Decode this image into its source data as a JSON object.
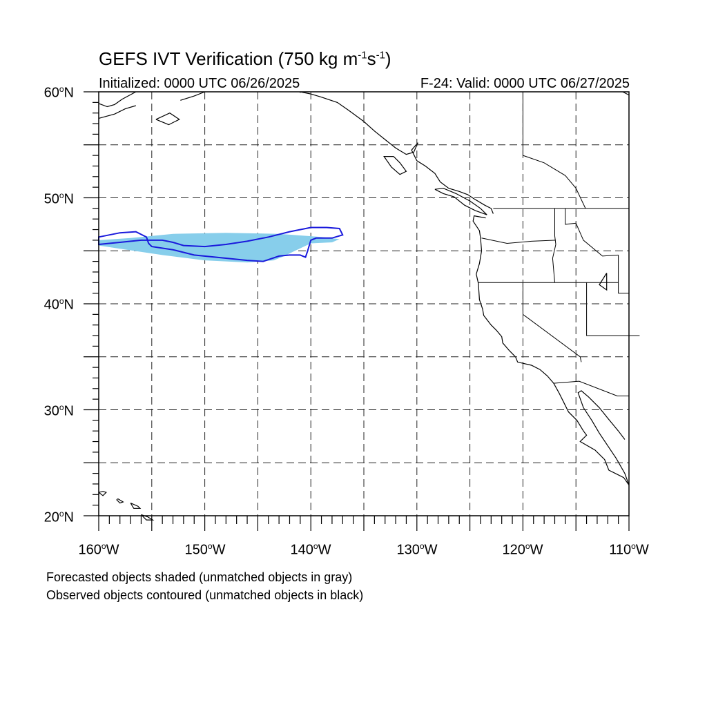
{
  "title": {
    "prefix": "GEFS IVT Verification (750 kg m",
    "exp1": "-1",
    "mid": "s",
    "exp2": "-1",
    "suffix": ")"
  },
  "subtitle_left": "Initialized: 0000 UTC 06/26/2025",
  "subtitle_right": "F-24: Valid: 0000 UTC 06/27/2025",
  "lat_labels": [
    {
      "num": "60",
      "deg": "o",
      "hem": "N"
    },
    {
      "num": "50",
      "deg": "o",
      "hem": "N"
    },
    {
      "num": "40",
      "deg": "o",
      "hem": "N"
    },
    {
      "num": "30",
      "deg": "o",
      "hem": "N"
    },
    {
      "num": "20",
      "deg": "o",
      "hem": "N"
    }
  ],
  "lon_labels": [
    {
      "num": "160",
      "deg": "o",
      "hem": "W"
    },
    {
      "num": "150",
      "deg": "o",
      "hem": "W"
    },
    {
      "num": "140",
      "deg": "o",
      "hem": "W"
    },
    {
      "num": "130",
      "deg": "o",
      "hem": "W"
    },
    {
      "num": "120",
      "deg": "o",
      "hem": "W"
    },
    {
      "num": "110",
      "deg": "o",
      "hem": "W"
    }
  ],
  "notes": {
    "forecast": "Forecasted objects shaded (unmatched objects in gray)",
    "observed": "Observed objects contoured (unmatched objects in black)"
  },
  "map": {
    "lon_range": [
      -160,
      -110
    ],
    "lat_range": [
      20,
      60
    ],
    "grid_spacing_deg": 5,
    "grid_style": "dashed",
    "forecast_fill_color": "#87ceeb",
    "observed_contour_color": "#1a1adc",
    "forecast_object": [
      [
        -160,
        46.0
      ],
      [
        -157,
        46.2
      ],
      [
        -153,
        46.6
      ],
      [
        -148,
        46.7
      ],
      [
        -143,
        46.6
      ],
      [
        -139,
        46.3
      ],
      [
        -137.3,
        46.1
      ],
      [
        -138,
        45.8
      ],
      [
        -140,
        45.7
      ],
      [
        -141.5,
        45.0
      ],
      [
        -142.5,
        44.5
      ],
      [
        -143.5,
        44.1
      ],
      [
        -146,
        43.9
      ],
      [
        -150,
        44.1
      ],
      [
        -154,
        44.6
      ],
      [
        -158,
        45.2
      ],
      [
        -160,
        45.5
      ]
    ],
    "observed_object": [
      [
        -160,
        46.3
      ],
      [
        -158,
        46.7
      ],
      [
        -156.5,
        46.8
      ],
      [
        -155.5,
        46.3
      ],
      [
        -155.3,
        45.7
      ],
      [
        -155,
        45.4
      ],
      [
        -153,
        45.1
      ],
      [
        -151,
        44.6
      ],
      [
        -148,
        44.3
      ],
      [
        -146,
        44.1
      ],
      [
        -144.5,
        44.0
      ],
      [
        -143,
        44.5
      ],
      [
        -142,
        44.6
      ],
      [
        -141,
        44.6
      ],
      [
        -140.5,
        44.4
      ],
      [
        -140.3,
        45.0
      ],
      [
        -140,
        46.0
      ],
      [
        -139.5,
        46.2
      ],
      [
        -138,
        46.2
      ],
      [
        -137,
        46.5
      ],
      [
        -137.3,
        47.1
      ],
      [
        -138.5,
        47.2
      ],
      [
        -140,
        47.2
      ],
      [
        -142,
        46.8
      ],
      [
        -144,
        46.3
      ],
      [
        -146,
        45.9
      ],
      [
        -148,
        45.6
      ],
      [
        -150,
        45.4
      ],
      [
        -152,
        45.5
      ],
      [
        -153,
        45.8
      ],
      [
        -154,
        46.0
      ],
      [
        -156,
        46.0
      ],
      [
        -158,
        45.8
      ],
      [
        -160,
        45.6
      ]
    ]
  }
}
